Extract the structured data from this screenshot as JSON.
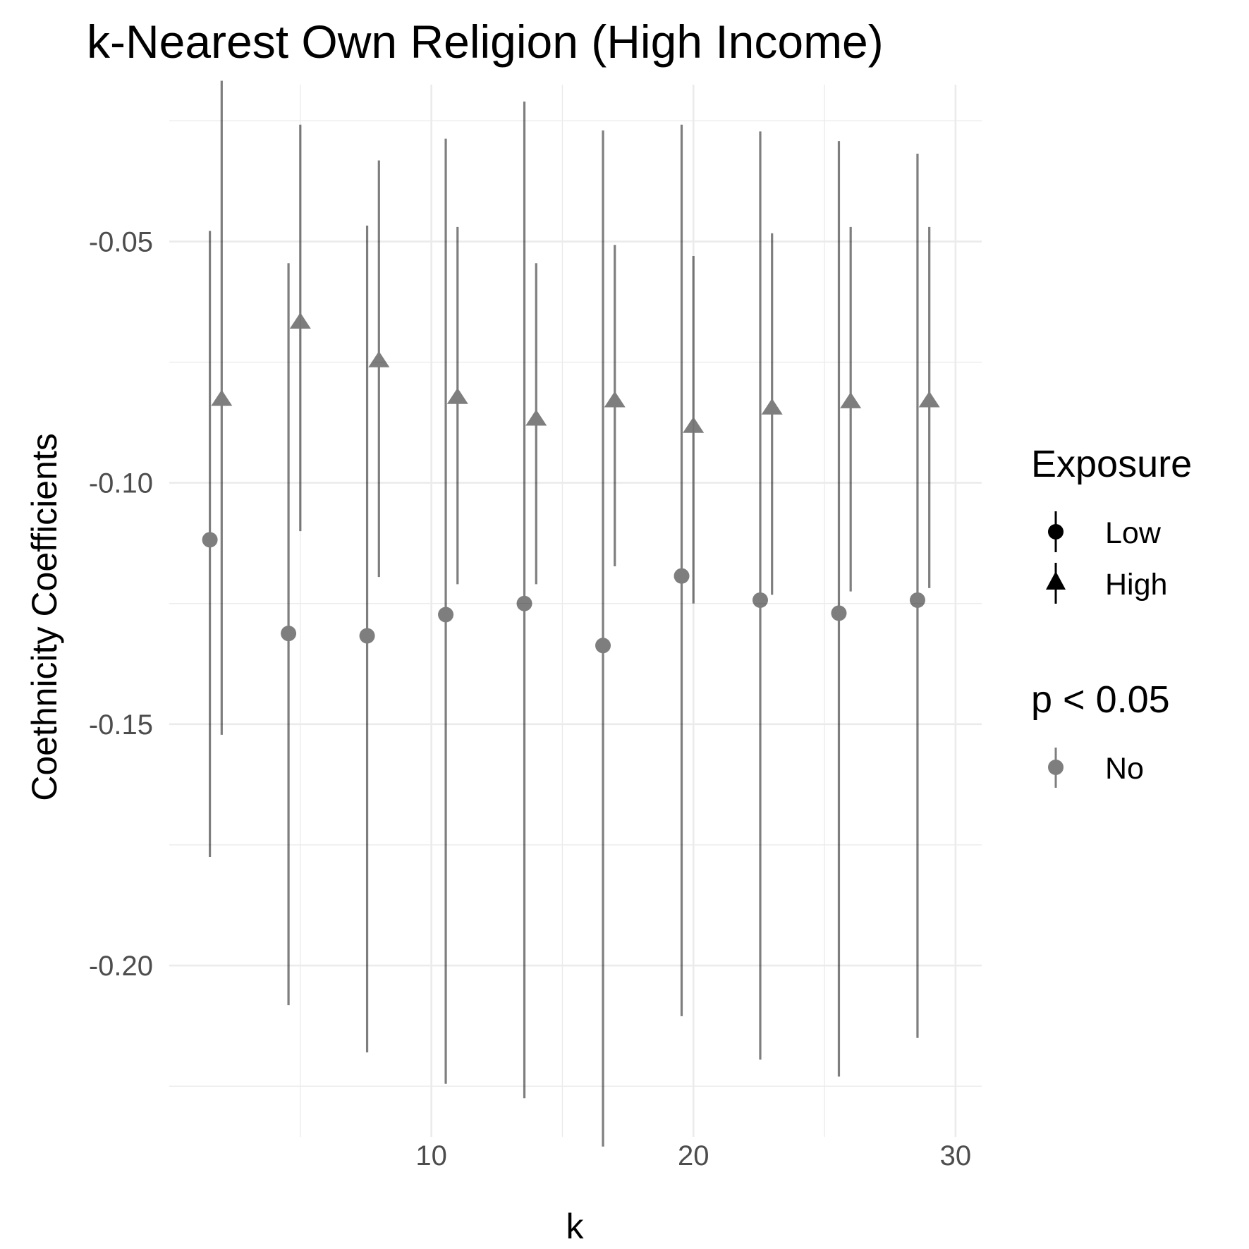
{
  "chart_data": {
    "type": "scatter",
    "title": "k-Nearest Own Religion (High Income)",
    "xlabel": "k",
    "ylabel": "Coethnicity Coefficients",
    "xlim": [
      0,
      31
    ],
    "ylim": [
      -0.2355,
      -0.0175
    ],
    "x_ticks": [
      10,
      20,
      30
    ],
    "x_tick_labels": [
      "10",
      "20",
      "30"
    ],
    "y_ticks": [
      -0.2,
      -0.15,
      -0.1,
      -0.05
    ],
    "y_tick_labels": [
      "-0.20",
      "-0.15",
      "-0.10",
      "-0.05"
    ],
    "grid": true,
    "legend_position": "right",
    "legend": [
      {
        "title": "Exposure",
        "entries": [
          {
            "label": "Low",
            "shape": "circle"
          },
          {
            "label": "High",
            "shape": "triangle"
          }
        ]
      },
      {
        "title": "p < 0.05",
        "entries": [
          {
            "label": "No",
            "shape": "circle"
          }
        ]
      }
    ],
    "series": [
      {
        "name": "Low",
        "shape": "circle",
        "points": [
          {
            "x": 1.55,
            "y": -0.1118,
            "lo": -0.1775,
            "hi": -0.0478
          },
          {
            "x": 4.55,
            "y": -0.1312,
            "lo": -0.2082,
            "hi": -0.0545
          },
          {
            "x": 7.55,
            "y": -0.1317,
            "lo": -0.218,
            "hi": -0.0467
          },
          {
            "x": 10.55,
            "y": -0.1273,
            "lo": -0.2245,
            "hi": -0.0287
          },
          {
            "x": 13.55,
            "y": -0.125,
            "lo": -0.2275,
            "hi": -0.021
          },
          {
            "x": 16.55,
            "y": -0.1337,
            "lo": -0.2375,
            "hi": -0.027
          },
          {
            "x": 19.55,
            "y": -0.1193,
            "lo": -0.2105,
            "hi": -0.0258
          },
          {
            "x": 22.55,
            "y": -0.1243,
            "lo": -0.2195,
            "hi": -0.0272
          },
          {
            "x": 25.55,
            "y": -0.127,
            "lo": -0.223,
            "hi": -0.0292
          },
          {
            "x": 28.55,
            "y": -0.1243,
            "lo": -0.215,
            "hi": -0.0318
          }
        ]
      },
      {
        "name": "High",
        "shape": "triangle",
        "points": [
          {
            "x": 2.0,
            "y": -0.0827,
            "lo": -0.1522,
            "hi": -0.0167
          },
          {
            "x": 5.0,
            "y": -0.0667,
            "lo": -0.11,
            "hi": -0.0258
          },
          {
            "x": 8.0,
            "y": -0.0747,
            "lo": -0.1195,
            "hi": -0.0332
          },
          {
            "x": 11.0,
            "y": -0.0823,
            "lo": -0.121,
            "hi": -0.047
          },
          {
            "x": 14.0,
            "y": -0.0868,
            "lo": -0.121,
            "hi": -0.0545
          },
          {
            "x": 17.0,
            "y": -0.083,
            "lo": -0.1173,
            "hi": -0.0507
          },
          {
            "x": 20.0,
            "y": -0.0883,
            "lo": -0.125,
            "hi": -0.053
          },
          {
            "x": 23.0,
            "y": -0.0845,
            "lo": -0.1232,
            "hi": -0.0483
          },
          {
            "x": 26.0,
            "y": -0.0832,
            "lo": -0.1225,
            "hi": -0.047
          },
          {
            "x": 29.0,
            "y": -0.083,
            "lo": -0.1218,
            "hi": -0.047
          }
        ]
      }
    ],
    "colors": {
      "mark": "#000000",
      "grid": "#ebebeb",
      "tick_text": "#4d4d4d"
    }
  }
}
